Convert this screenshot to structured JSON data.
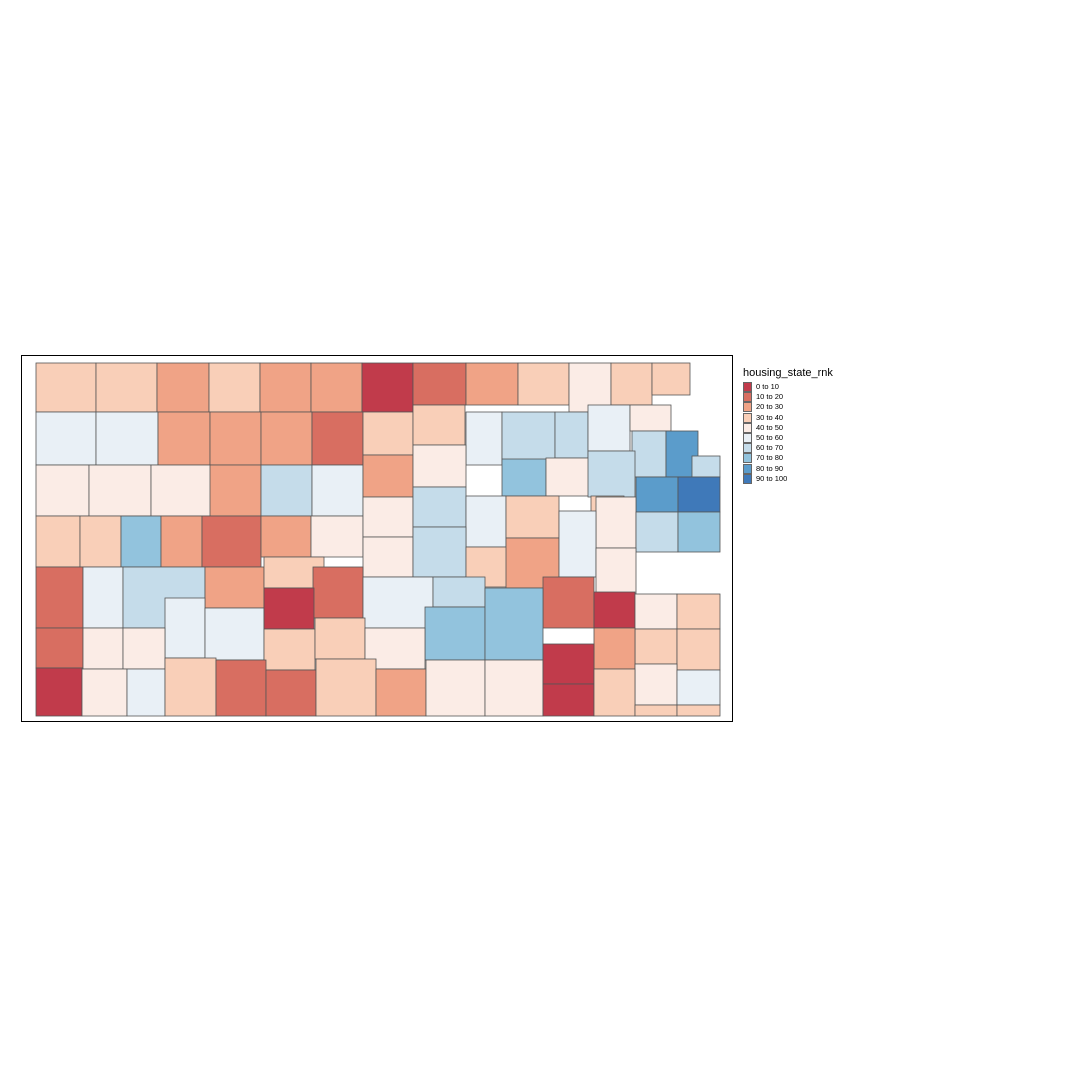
{
  "legend": {
    "title": "housing_state_rnk",
    "classes": [
      {
        "label": "0 to 10",
        "color": "#c13b4b"
      },
      {
        "label": "10 to 20",
        "color": "#d86e61"
      },
      {
        "label": "20 to 30",
        "color": "#f0a386"
      },
      {
        "label": "30 to 40",
        "color": "#f9cfb8"
      },
      {
        "label": "40 to 50",
        "color": "#fbece6"
      },
      {
        "label": "50 to 60",
        "color": "#e9f0f6"
      },
      {
        "label": "60 to 70",
        "color": "#c5dcea"
      },
      {
        "label": "70 to 80",
        "color": "#92c3dd"
      },
      {
        "label": "80 to 90",
        "color": "#5b9ccb"
      },
      {
        "label": "90 to 100",
        "color": "#3f79b9"
      }
    ]
  },
  "style": {
    "border_color": "#555555"
  }
}
